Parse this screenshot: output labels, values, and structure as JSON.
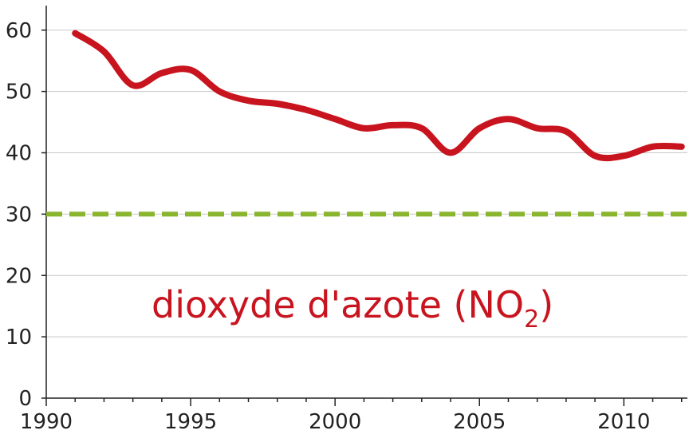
{
  "chart_data": {
    "type": "line",
    "title": "",
    "xlabel": "",
    "ylabel": "",
    "xlim": [
      1990,
      2012.2
    ],
    "ylim": [
      0,
      64
    ],
    "x_ticks": [
      1990,
      1995,
      2000,
      2005,
      2010
    ],
    "y_ticks": [
      0,
      10,
      20,
      30,
      40,
      50,
      60
    ],
    "grid": "horizontal",
    "legend": "none",
    "series": [
      {
        "color": "#c8141e",
        "style": "solid-thick",
        "x": [
          1991,
          1992,
          1993,
          1994,
          1995,
          1996,
          1997,
          1998,
          1999,
          2000,
          2001,
          2002,
          2003,
          2004,
          2005,
          2006,
          2007,
          2008,
          2009,
          2010,
          2011,
          2012
        ],
        "y": [
          59.5,
          56.5,
          51,
          53,
          53.5,
          50,
          48.5,
          48,
          47,
          45.5,
          44,
          44.5,
          44,
          40,
          44,
          45.5,
          44,
          43.5,
          39.5,
          39.5,
          41,
          41
        ]
      },
      {
        "color": "#8ab52e",
        "style": "dashed",
        "x": [
          1990,
          2012.2
        ],
        "y": [
          30,
          30
        ]
      }
    ],
    "annotations": [
      {
        "text": "dioxyde d'azote (NO",
        "subscript": "2",
        "suffix": ")",
        "color": "#c8141e"
      }
    ]
  }
}
